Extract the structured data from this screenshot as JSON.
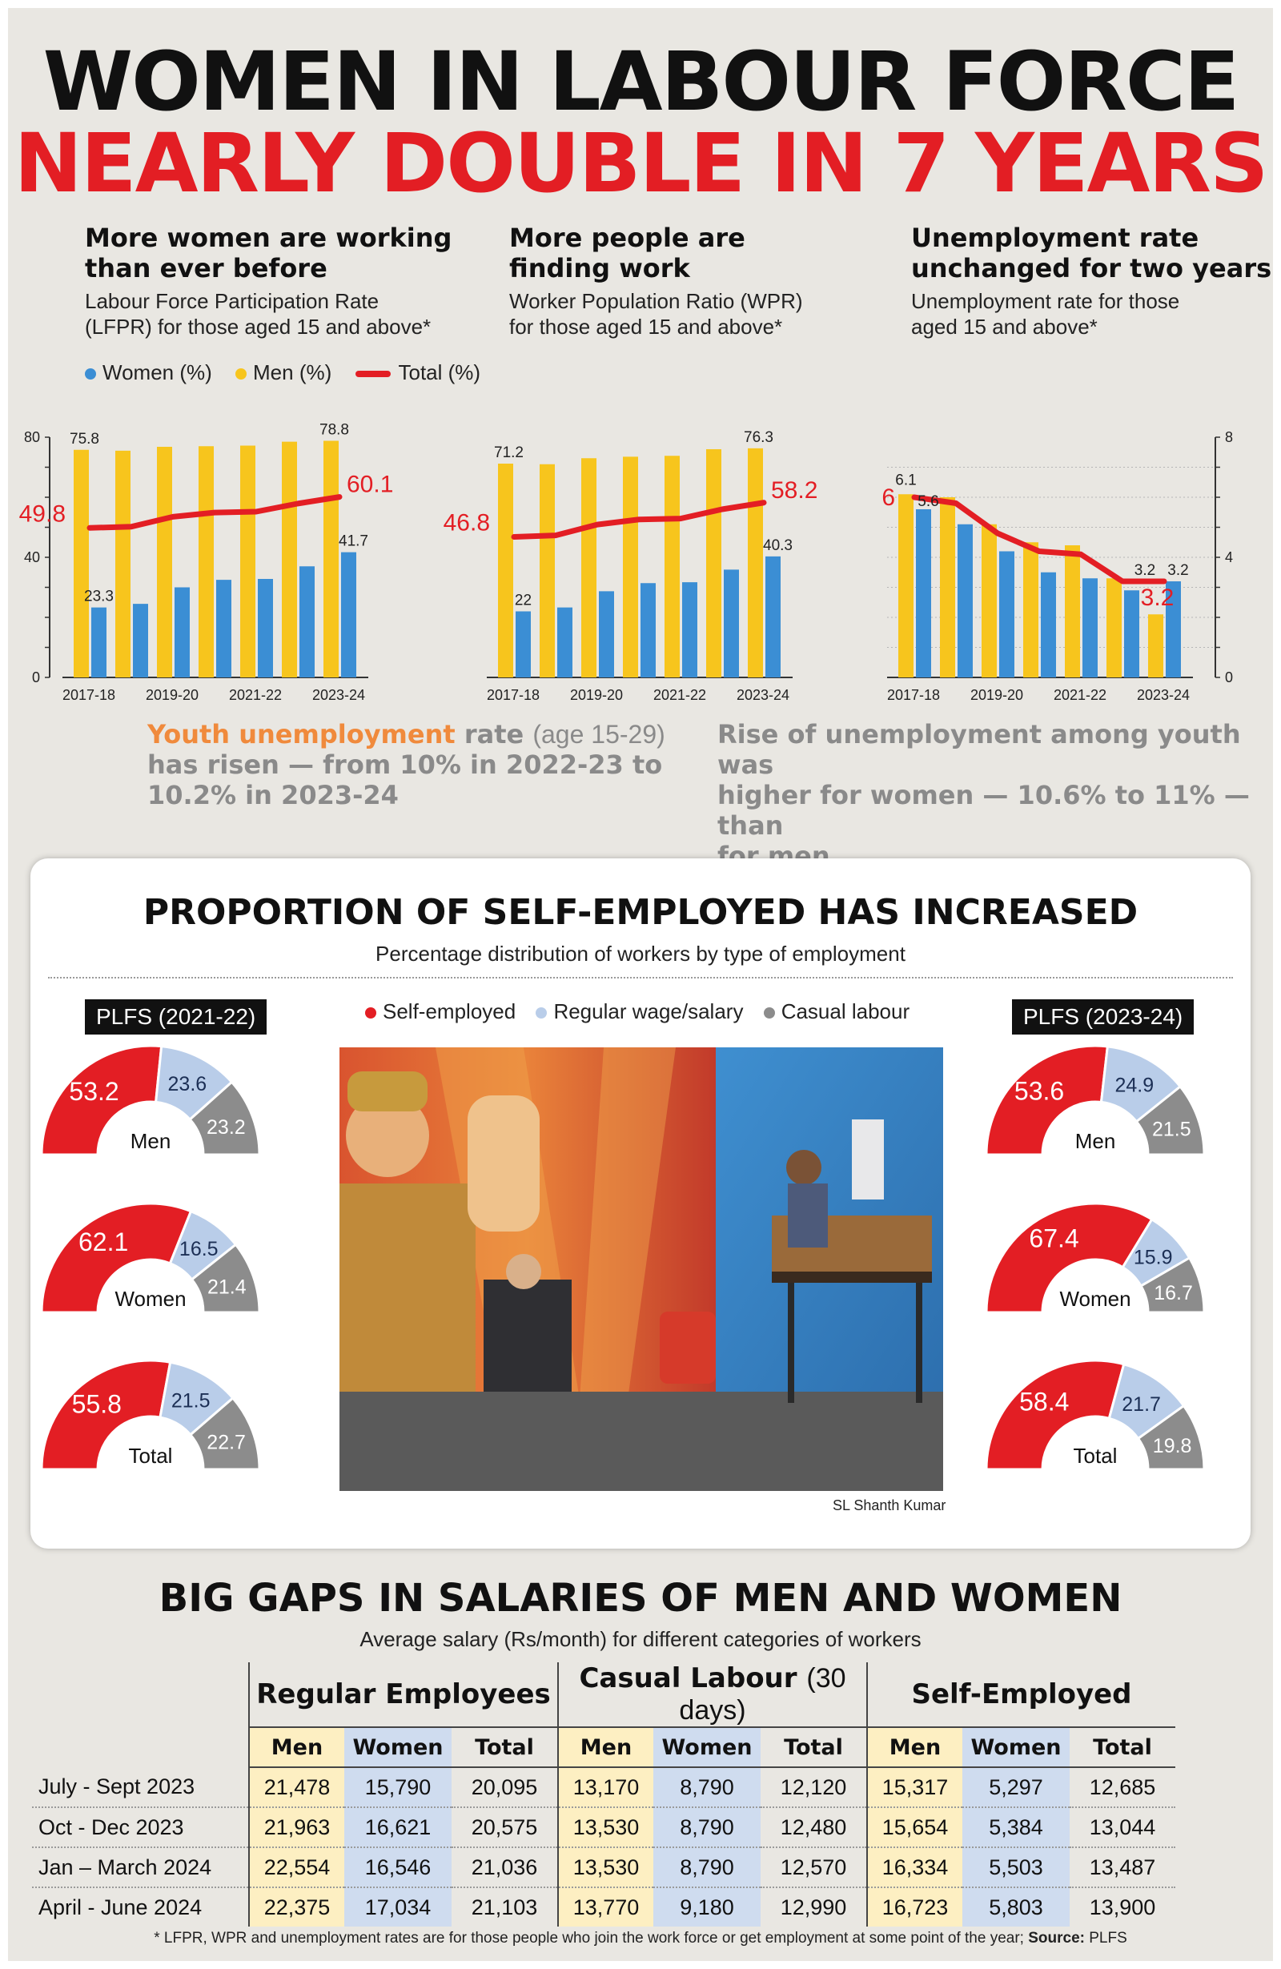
{
  "header": {
    "line1": "WOMEN IN LABOUR FORCE",
    "line2": "NEARLY DOUBLE IN 7 YEARS"
  },
  "sections": [
    {
      "heading1": "More women are working",
      "heading2": "than ever before",
      "sub1": "Labour Force Participation Rate",
      "sub2": "(LFPR) for those aged 15 and above*"
    },
    {
      "heading1": "More people are",
      "heading2": "finding work",
      "sub1": "Worker Population Ratio (WPR)",
      "sub2": "for those aged 15 and above*"
    },
    {
      "heading1": "Unemployment rate",
      "heading2": "unchanged for two years",
      "sub1": "Unemployment rate for those",
      "sub2": "aged 15 and above*"
    }
  ],
  "legend": {
    "women": "Women (%)",
    "men": "Men (%)",
    "total": "Total (%)"
  },
  "colors": {
    "men": "#f7c51d",
    "women": "#3b8ed4",
    "total": "#e31e24",
    "self": "#e31e24",
    "regular": "#b9cde9",
    "casual": "#8c8c8c"
  },
  "chart_data": [
    {
      "type": "bar",
      "categories": [
        "2017-18",
        "2018-19",
        "2019-20",
        "2020-21",
        "2021-22",
        "2022-23",
        "2023-24"
      ],
      "tick_labels": [
        "2017-18",
        "2019-20",
        "2021-22",
        "2023-24"
      ],
      "y_ticks": [
        "0",
        "40",
        "80"
      ],
      "ylim": [
        0,
        80
      ],
      "series": [
        {
          "name": "Men (%)",
          "values": [
            75.8,
            75.5,
            76.8,
            77.0,
            77.2,
            78.5,
            78.8
          ],
          "labels": {
            "0": "75.8",
            "6": "78.8"
          }
        },
        {
          "name": "Women (%)",
          "values": [
            23.3,
            24.5,
            30.0,
            32.5,
            32.8,
            37.0,
            41.7
          ],
          "labels": {
            "0": "23.3",
            "6": "41.7"
          }
        },
        {
          "name": "Total (%)",
          "type": "line",
          "values": [
            49.8,
            50.2,
            53.5,
            54.9,
            55.2,
            57.9,
            60.1
          ],
          "labels": {
            "0": "49.8",
            "6": "60.1"
          }
        }
      ]
    },
    {
      "type": "bar",
      "categories": [
        "2017-18",
        "2018-19",
        "2019-20",
        "2020-21",
        "2021-22",
        "2022-23",
        "2023-24"
      ],
      "tick_labels": [
        "2017-18",
        "2019-20",
        "2021-22",
        "2023-24"
      ],
      "ylim": [
        0,
        80
      ],
      "series": [
        {
          "name": "Men (%)",
          "values": [
            71.2,
            71.0,
            73.0,
            73.5,
            73.8,
            76.0,
            76.3
          ],
          "labels": {
            "0": "71.2",
            "6": "76.3"
          }
        },
        {
          "name": "Women (%)",
          "values": [
            22.0,
            23.3,
            28.7,
            31.4,
            31.7,
            35.9,
            40.3
          ],
          "labels": {
            "0": "22",
            "6": "40.3"
          }
        },
        {
          "name": "Total (%)",
          "type": "line",
          "values": [
            46.8,
            47.3,
            50.9,
            52.6,
            52.9,
            56.0,
            58.2
          ],
          "labels": {
            "0": "46.8",
            "6": "58.2"
          }
        }
      ]
    },
    {
      "type": "bar",
      "categories": [
        "2017-18",
        "2018-19",
        "2019-20",
        "2020-21",
        "2021-22",
        "2022-23",
        "2023-24"
      ],
      "tick_labels": [
        "2017-18",
        "2019-20",
        "2021-22",
        "2023-24"
      ],
      "y_ticks": [
        "0",
        "4",
        "8"
      ],
      "ylim": [
        0,
        8
      ],
      "series": [
        {
          "name": "Men (%)",
          "values": [
            6.1,
            6.0,
            5.1,
            4.5,
            4.4,
            3.3,
            2.1
          ],
          "labels": {
            "0": "6.1"
          }
        },
        {
          "name": "Women (%)",
          "values": [
            5.6,
            5.1,
            4.2,
            3.5,
            3.3,
            2.9,
            3.2
          ],
          "labels": {
            "0": "5.6",
            "6": "3.2"
          }
        },
        {
          "name": "Total (%)",
          "type": "line",
          "values": [
            6.0,
            5.8,
            4.8,
            4.2,
            4.1,
            3.2,
            3.2
          ],
          "labels": {
            "0": "6",
            "6": "3.2"
          }
        }
      ],
      "extra_labels": [
        "3.2"
      ]
    },
    {
      "type": "pie",
      "title": "PROPORTION OF SELF-EMPLOYED HAS INCREASED",
      "subtitle": "Percentage distribution of workers by type of employment",
      "legend": [
        "Self-employed",
        "Regular wage/salary",
        "Casual labour"
      ],
      "groups": [
        {
          "name": "PLFS (2021-22)",
          "charts": [
            {
              "label": "Men",
              "values": [
                53.2,
                23.6,
                23.2
              ]
            },
            {
              "label": "Women",
              "values": [
                62.1,
                16.5,
                21.4
              ]
            },
            {
              "label": "Total",
              "values": [
                55.8,
                21.5,
                22.7
              ]
            }
          ]
        },
        {
          "name": "PLFS (2023-24)",
          "charts": [
            {
              "label": "Men",
              "values": [
                53.6,
                24.9,
                21.5
              ]
            },
            {
              "label": "Women",
              "values": [
                67.4,
                15.9,
                16.7
              ]
            },
            {
              "label": "Total",
              "values": [
                58.4,
                21.7,
                19.8
              ]
            }
          ]
        }
      ]
    },
    {
      "type": "table",
      "title": "BIG GAPS IN SALARIES OF MEN AND WOMEN",
      "subtitle": "Average salary (Rs/month) for different categories of workers",
      "groups": [
        "Regular Employees",
        "Casual Labour",
        "Self-Employed"
      ],
      "group_note": "(30 days)",
      "columns": [
        "Men",
        "Women",
        "Total"
      ],
      "rows": [
        {
          "period": "July - Sept 2023",
          "cells": [
            "21,478",
            "15,790",
            "20,095",
            "13,170",
            "8,790",
            "12,120",
            "15,317",
            "5,297",
            "12,685"
          ]
        },
        {
          "period": "Oct - Dec 2023",
          "cells": [
            "21,963",
            "16,621",
            "20,575",
            "13,530",
            "8,790",
            "12,480",
            "15,654",
            "5,384",
            "13,044"
          ]
        },
        {
          "period": "Jan – March 2024",
          "cells": [
            "22,554",
            "16,546",
            "21,036",
            "13,530",
            "8,790",
            "12,570",
            "16,334",
            "5,503",
            "13,487"
          ]
        },
        {
          "period": "April - June 2024",
          "cells": [
            "22,375",
            "17,034",
            "21,103",
            "13,770",
            "9,180",
            "12,990",
            "16,723",
            "5,803",
            "13,900"
          ]
        }
      ]
    }
  ],
  "notes": {
    "youth_highlight": "Youth unemployment",
    "youth_word": "rate",
    "youth_age": "(age 15-29)",
    "youth_line2": "has risen — from 10% in 2022-23 to",
    "youth_line3": "10.2% in 2023-24",
    "women_line1": "Rise of unemployment among youth was",
    "women_line2": "higher for women — 10.6% to 11% — than",
    "women_line3": "for men"
  },
  "photo": {
    "credit": "SL Shanth Kumar"
  },
  "footnote": {
    "text": "* LFPR, WPR and unemployment rates are for those people who join the work force or get employment at some point of the year;",
    "source_label": "Source:",
    "source": "PLFS"
  }
}
